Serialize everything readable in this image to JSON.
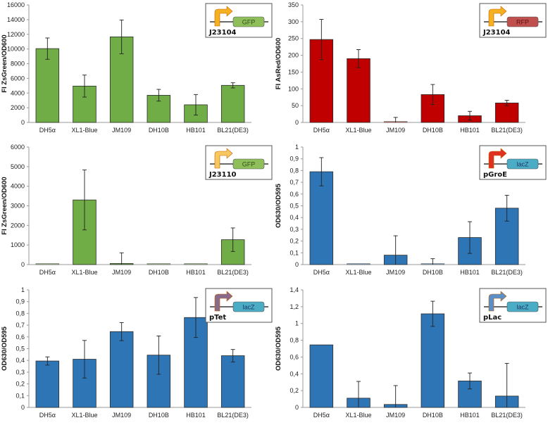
{
  "chart_data": [
    {
      "type": "bar",
      "title": "",
      "ylabel": "FI ZsGreen/OD600",
      "xlabel": "",
      "categories": [
        "DH5α",
        "XL1-Blue",
        "JM109",
        "DH10B",
        "HB101",
        "BL21(DE3)"
      ],
      "values": [
        10050,
        4950,
        11650,
        3700,
        2400,
        5050
      ],
      "errors": [
        1450,
        1500,
        2300,
        800,
        1400,
        350
      ],
      "ylim": [
        0,
        16000
      ],
      "yticks": [
        "0",
        "2000",
        "4000",
        "6000",
        "8000",
        "10000",
        "12000",
        "14000",
        "16000"
      ],
      "color": "#70ad47",
      "inset": {
        "promoter": "J23104",
        "gene": "GFP",
        "promoter_color": "#f5b120",
        "gene_color": "#8fbf5a",
        "gene_text_color": "#2f4f1a"
      }
    },
    {
      "type": "bar",
      "title": "",
      "ylabel": "FI AsRed/OD600",
      "xlabel": "",
      "categories": [
        "DH5α",
        "XL1-Blue",
        "JM109",
        "DH10B",
        "HB101",
        "BL21(DE3)"
      ],
      "values": [
        247,
        190,
        0,
        83,
        20,
        58
      ],
      "errors": [
        60,
        27,
        15,
        30,
        13,
        8
      ],
      "ylim": [
        0,
        350
      ],
      "yticks": [
        "0",
        "50",
        "100",
        "150",
        "200",
        "250",
        "300",
        "350"
      ],
      "color": "#c00000",
      "inset": {
        "promoter": "J23104",
        "gene": "RFP",
        "promoter_color": "#f5b120",
        "gene_color": "#c0504d",
        "gene_text_color": "#5a1010"
      }
    },
    {
      "type": "bar",
      "title": "",
      "ylabel": "FI ZsGreen/OD600",
      "xlabel": "",
      "categories": [
        "DH5α",
        "XL1-Blue",
        "JM109",
        "DH10B",
        "HB101",
        "BL21(DE3)"
      ],
      "values": [
        0,
        3300,
        50,
        0,
        0,
        1270
      ],
      "errors": [
        0,
        1530,
        550,
        0,
        0,
        600
      ],
      "ylim": [
        0,
        6000
      ],
      "yticks": [
        "0",
        "1000",
        "2000",
        "3000",
        "4000",
        "5000",
        "6000"
      ],
      "color": "#70ad47",
      "inset": {
        "promoter": "J23110",
        "gene": "GFP",
        "promoter_color": "#f8c860",
        "gene_color": "#8fbf5a",
        "gene_text_color": "#2f4f1a"
      }
    },
    {
      "type": "bar",
      "title": "",
      "ylabel": "OD630/OD595",
      "xlabel": "",
      "categories": [
        "DH5α",
        "XL1-Blue",
        "JM109",
        "DH10B",
        "HB101",
        "BL21(DE3)"
      ],
      "values": [
        0.79,
        0,
        0.08,
        0,
        0.23,
        0.48
      ],
      "errors": [
        0.12,
        0,
        0.165,
        0.05,
        0.135,
        0.11
      ],
      "ylim": [
        0,
        1
      ],
      "yticks": [
        "0",
        "0,1",
        "0,2",
        "0,3",
        "0,4",
        "0,5",
        "0,6",
        "0,7",
        "0,8",
        "0,9",
        "1"
      ],
      "color": "#2e75b6",
      "inset": {
        "promoter": "pGroE",
        "gene": "lacZ",
        "promoter_color": "#e03020",
        "gene_color": "#4bacc6",
        "gene_text_color": "#1f3864"
      }
    },
    {
      "type": "bar",
      "title": "",
      "ylabel": "OD630/OD595",
      "xlabel": "",
      "categories": [
        "DH5α",
        "XL1-Blue",
        "JM109",
        "DH10B",
        "HB101",
        "BL21(DE3)"
      ],
      "values": [
        0.395,
        0.41,
        0.645,
        0.445,
        0.765,
        0.44
      ],
      "errors": [
        0.035,
        0.16,
        0.077,
        0.163,
        0.17,
        0.053
      ],
      "ylim": [
        0,
        1
      ],
      "yticks": [
        "0",
        "0,1",
        "0,2",
        "0,3",
        "0,4",
        "0,5",
        "0,6",
        "0,7",
        "0,8",
        "0,9",
        "1"
      ],
      "color": "#2e75b6",
      "inset": {
        "promoter": "pTet",
        "gene": "lacZ",
        "promoter_color": "#8a6a8a",
        "gene_color": "#4bacc6",
        "gene_text_color": "#1f3864"
      }
    },
    {
      "type": "bar",
      "title": "",
      "ylabel": "OD630/OD595",
      "xlabel": "",
      "categories": [
        "DH5α",
        "XL1-Blue",
        "JM109",
        "DH10B",
        "HB101",
        "BL21(DE3)"
      ],
      "values": [
        0.745,
        0.11,
        0.035,
        1.115,
        0.315,
        0.135
      ],
      "errors": [
        0,
        0.2,
        0.225,
        0.15,
        0.095,
        0.39
      ],
      "ylim": [
        0,
        1.4
      ],
      "yticks": [
        "0",
        "0,2",
        "0,4",
        "0,6",
        "0,8",
        "1",
        "1,2",
        "1,4"
      ],
      "color": "#2e75b6",
      "inset": {
        "promoter": "pLac",
        "gene": "lacZ",
        "promoter_color": "#5b8fc8",
        "gene_color": "#4bacc6",
        "gene_text_color": "#1f3864"
      }
    }
  ]
}
